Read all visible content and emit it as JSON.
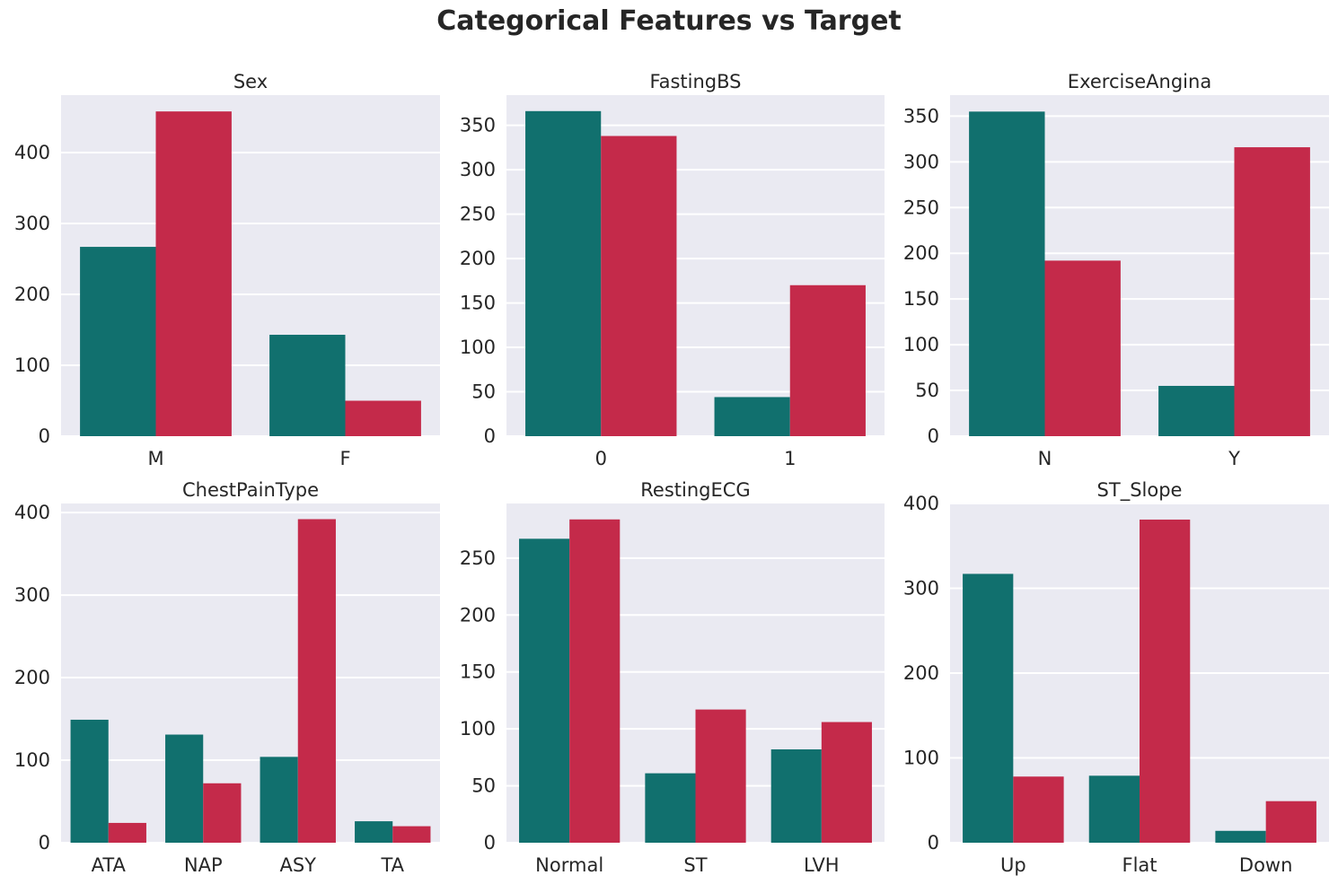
{
  "title": "Categorical Features vs Target",
  "colors": {
    "target_0": "#11706e",
    "target_1": "#c42a4a",
    "panel_bg": "#eaeaf2",
    "grid": "#ffffff"
  },
  "chart_data": [
    {
      "type": "bar",
      "title": "Sex",
      "categories": [
        "M",
        "F"
      ],
      "series": [
        {
          "values": [
            267,
            143
          ]
        },
        {
          "values": [
            458,
            50
          ]
        }
      ],
      "ylim": [
        0,
        481
      ],
      "yticks": [
        0,
        100,
        200,
        300,
        400
      ],
      "grid": true
    },
    {
      "type": "bar",
      "title": "FastingBS",
      "categories": [
        "0",
        "1"
      ],
      "series": [
        {
          "values": [
            366,
            44
          ]
        },
        {
          "values": [
            338,
            170
          ]
        }
      ],
      "ylim": [
        0,
        384
      ],
      "yticks": [
        0,
        50,
        100,
        150,
        200,
        250,
        300,
        350
      ],
      "grid": true
    },
    {
      "type": "bar",
      "title": "ExerciseAngina",
      "categories": [
        "N",
        "Y"
      ],
      "series": [
        {
          "values": [
            355,
            55
          ]
        },
        {
          "values": [
            192,
            316
          ]
        }
      ],
      "ylim": [
        0,
        373
      ],
      "yticks": [
        0,
        50,
        100,
        150,
        200,
        250,
        300,
        350
      ],
      "grid": true
    },
    {
      "type": "bar",
      "title": "ChestPainType",
      "categories": [
        "ATA",
        "NAP",
        "ASY",
        "TA"
      ],
      "series": [
        {
          "values": [
            149,
            131,
            104,
            26
          ]
        },
        {
          "values": [
            24,
            72,
            392,
            20
          ]
        }
      ],
      "ylim": [
        0,
        411
      ],
      "yticks": [
        0,
        100,
        200,
        300,
        400
      ],
      "grid": true
    },
    {
      "type": "bar",
      "title": "RestingECG",
      "categories": [
        "Normal",
        "ST",
        "LVH"
      ],
      "series": [
        {
          "values": [
            267,
            61,
            82
          ]
        },
        {
          "values": [
            284,
            117,
            106
          ]
        }
      ],
      "ylim": [
        0,
        298
      ],
      "yticks": [
        0,
        50,
        100,
        150,
        200,
        250
      ],
      "grid": true
    },
    {
      "type": "bar",
      "title": "ST_Slope",
      "categories": [
        "Up",
        "Flat",
        "Down"
      ],
      "series": [
        {
          "values": [
            317,
            79,
            14
          ]
        },
        {
          "values": [
            78,
            381,
            49
          ]
        }
      ],
      "ylim": [
        0,
        400
      ],
      "yticks": [
        0,
        100,
        200,
        300,
        400
      ],
      "grid": true
    }
  ]
}
